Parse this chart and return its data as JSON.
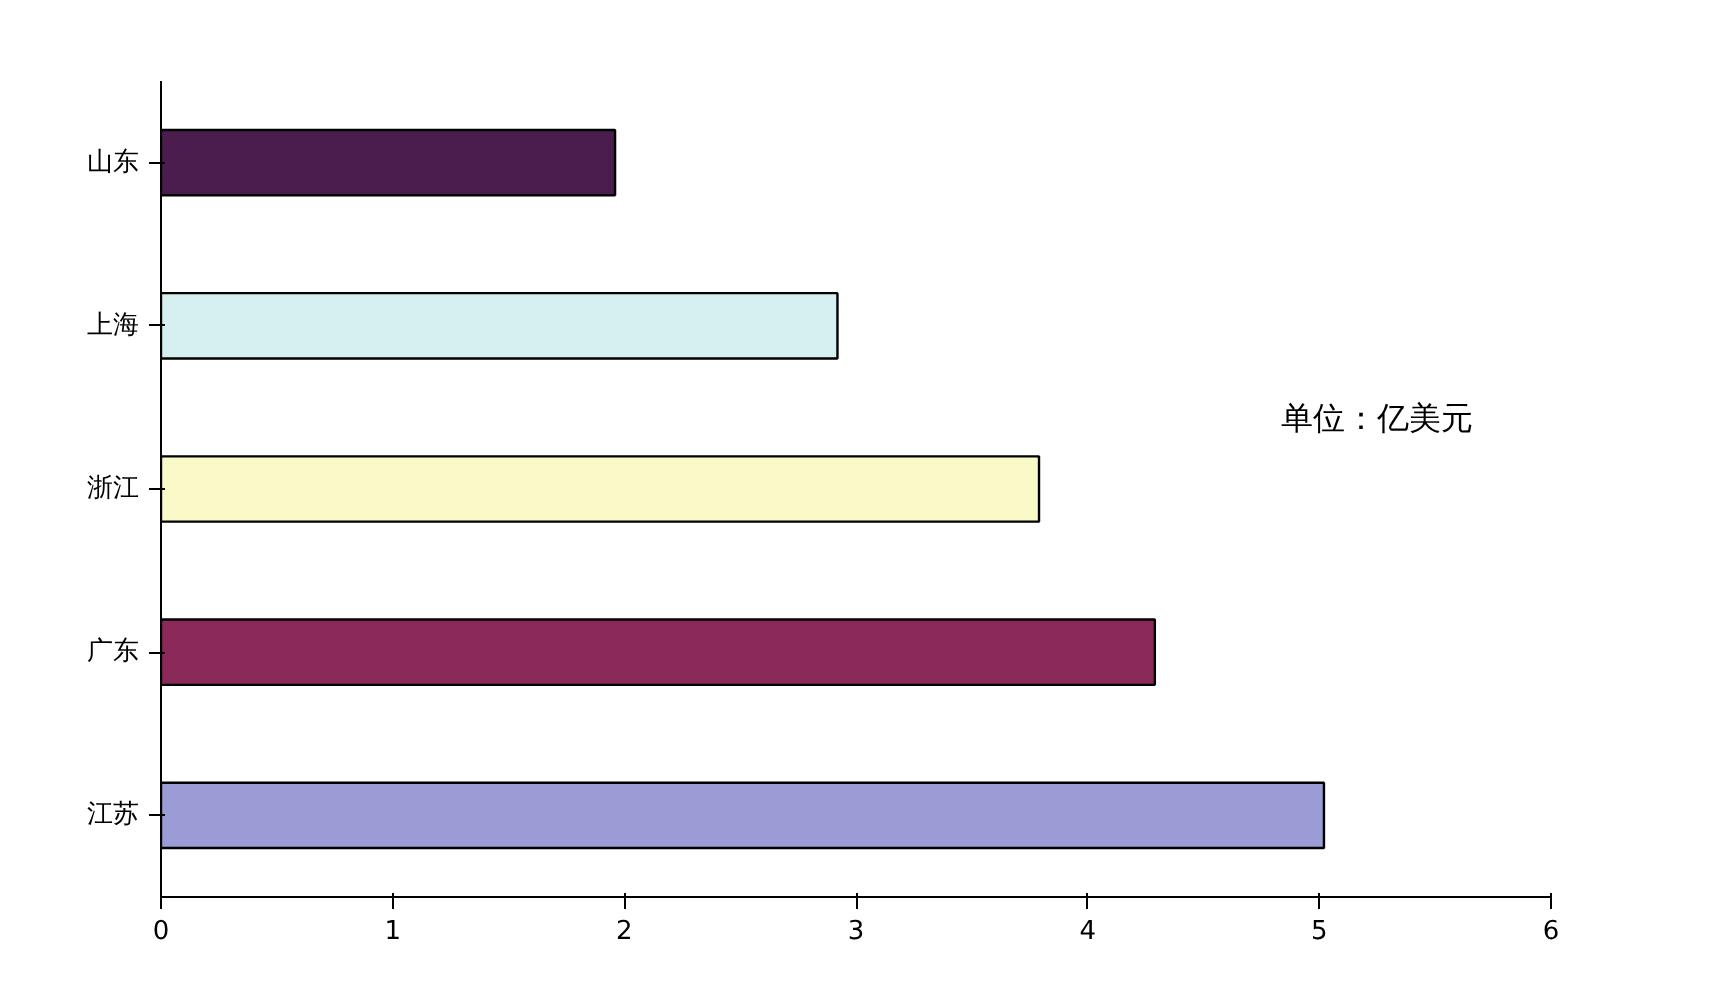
{
  "chart_data": {
    "type": "bar",
    "orientation": "horizontal",
    "categories": [
      "山东",
      "上海",
      "浙江",
      "广东",
      "江苏"
    ],
    "values": [
      1.96,
      2.92,
      3.79,
      4.29,
      5.02
    ],
    "colors": [
      "#4b1d4f",
      "#d6f0f2",
      "#fafac8",
      "#8b2a5a",
      "#9b9bd6"
    ],
    "xlim": [
      0,
      6
    ],
    "xticks": [
      0,
      1,
      2,
      3,
      4,
      5,
      6
    ],
    "grid": false,
    "annotations": [
      "单位：亿美元"
    ]
  }
}
